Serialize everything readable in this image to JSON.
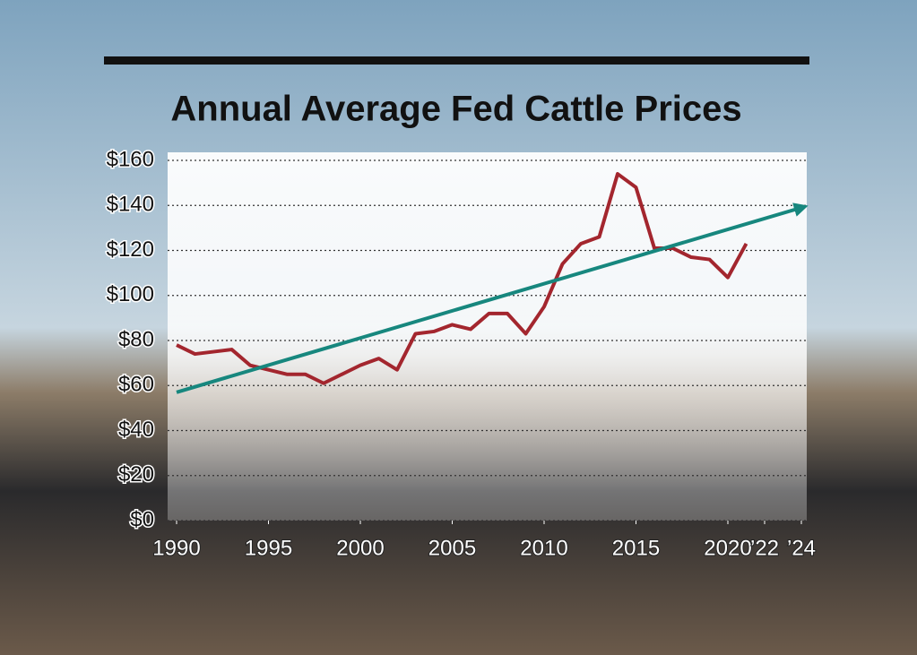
{
  "chart_data": {
    "type": "line",
    "title": "Annual Average Fed Cattle Prices",
    "x": [
      1990,
      1991,
      1992,
      1993,
      1994,
      1995,
      1996,
      1997,
      1998,
      1999,
      2000,
      2001,
      2002,
      2003,
      2004,
      2005,
      2006,
      2007,
      2008,
      2009,
      2010,
      2011,
      2012,
      2013,
      2014,
      2015,
      2016,
      2017,
      2018,
      2019,
      2020,
      2021
    ],
    "series": [
      {
        "color": "#a3262e",
        "values": [
          78,
          74,
          75,
          76,
          69,
          67,
          65,
          65,
          61,
          65,
          69,
          72,
          67,
          83,
          84,
          87,
          85,
          92,
          92,
          83,
          95,
          114,
          123,
          126,
          154,
          148,
          121,
          121,
          117,
          116,
          108,
          123
        ]
      },
      {
        "color": "#17877e",
        "x": [
          1990,
          2024
        ],
        "values": [
          57,
          139
        ],
        "arrow": true
      }
    ],
    "xlim": [
      1990,
      2024
    ],
    "xticks": [
      1990,
      1995,
      2000,
      2005,
      2010,
      2015,
      2020,
      {
        "value": 2022,
        "label": "’22"
      },
      {
        "value": 2024,
        "label": "’24"
      }
    ],
    "ylim": [
      0,
      160
    ],
    "yticks": [
      {
        "value": 0,
        "label": "$0"
      },
      {
        "value": 20,
        "label": "$20"
      },
      {
        "value": 40,
        "label": "$40"
      },
      {
        "value": 60,
        "label": "$60"
      },
      {
        "value": 80,
        "label": "$80"
      },
      {
        "value": 100,
        "label": "$100"
      },
      {
        "value": 120,
        "label": "$120"
      },
      {
        "value": 140,
        "label": "$140"
      },
      {
        "value": 160,
        "label": "$160"
      }
    ],
    "grid": true
  }
}
